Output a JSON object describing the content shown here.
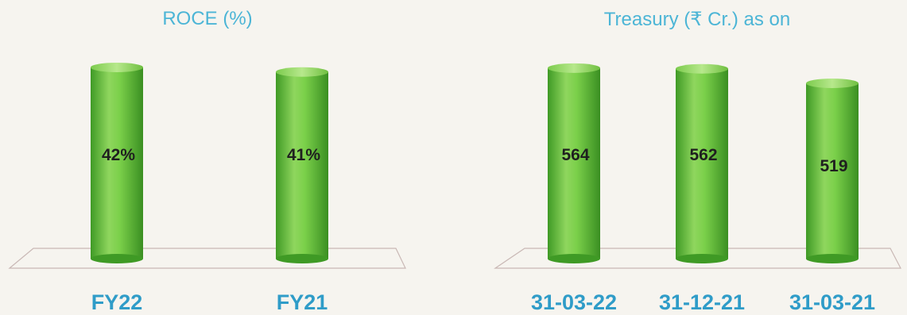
{
  "chart_data": [
    {
      "type": "bar",
      "title": "ROCE (%)",
      "categories": [
        "FY22",
        "FY21"
      ],
      "values": [
        42,
        41
      ],
      "data_labels": [
        "42%",
        "41%"
      ],
      "ylim": [
        0,
        46
      ],
      "xlabel": "",
      "ylabel": "",
      "grid": false,
      "legend": "none",
      "bar_style": "cylinder",
      "bar_color": "#6cc943"
    },
    {
      "type": "bar",
      "title": "Treasury (₹ Cr.) as on",
      "categories": [
        "31-03-22",
        "31-12-21",
        "31-03-21"
      ],
      "values": [
        564,
        562,
        519
      ],
      "data_labels": [
        "564",
        "562",
        "519"
      ],
      "ylim": [
        0,
        620
      ],
      "xlabel": "",
      "ylabel": "",
      "grid": false,
      "legend": "none",
      "bar_style": "cylinder",
      "bar_color": "#6cc943"
    }
  ],
  "colors": {
    "bar": "#6cc943",
    "bar_dark": "#3f9a25",
    "bar_light": "#a8e07a",
    "title": "#4cb5d6",
    "category_label": "#2f9cc8",
    "floor_stroke": "#c9b8b5"
  }
}
